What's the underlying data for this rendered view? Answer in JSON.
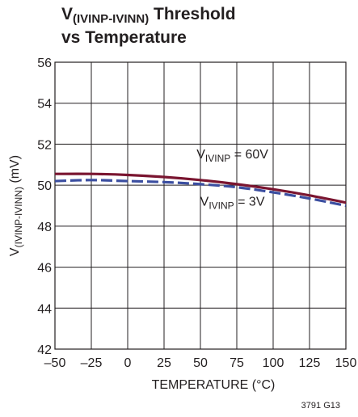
{
  "title": {
    "line1_main": "V",
    "line1_sub": "(IVINP-IVINN)",
    "line1_rest": " Threshold",
    "line2": "vs Temperature"
  },
  "figure_code": "3791 G13",
  "chart_data": {
    "type": "line",
    "xlabel": "TEMPERATURE (°C)",
    "ylabel_main": "V",
    "ylabel_sub": "(IVINP-IVINN)",
    "ylabel_rest": " (mV)",
    "xlim": [
      -50,
      150
    ],
    "ylim": [
      42,
      56
    ],
    "xticks": [
      "–50",
      "–25",
      "0",
      "25",
      "50",
      "75",
      "100",
      "125",
      "150"
    ],
    "xtick_values": [
      -50,
      -25,
      0,
      25,
      50,
      75,
      100,
      125,
      150
    ],
    "xgrid": [
      -50,
      -25,
      0,
      25,
      50,
      75,
      100,
      125,
      150
    ],
    "yticks": [
      "42",
      "44",
      "46",
      "48",
      "50",
      "52",
      "54",
      "56"
    ],
    "ytick_values": [
      42,
      44,
      46,
      48,
      50,
      52,
      54,
      56
    ],
    "grid": true,
    "series": [
      {
        "label_main": "V",
        "label_sub": "IVINP",
        "label_rest": " = 60V",
        "color": "#7a1530",
        "style": "solid",
        "label_pos": [
          72,
          51.3
        ],
        "x": [
          -50,
          -25,
          0,
          25,
          50,
          75,
          100,
          125,
          150
        ],
        "y": [
          50.55,
          50.55,
          50.5,
          50.4,
          50.25,
          50.05,
          49.8,
          49.5,
          49.15
        ]
      },
      {
        "label_main": "V",
        "label_sub": "IVINP",
        "label_rest": " = 3V",
        "color": "#3b4ea0",
        "style": "dashed",
        "label_pos": [
          72,
          49.0
        ],
        "x": [
          -50,
          -25,
          0,
          25,
          50,
          75,
          100,
          125,
          150
        ],
        "y": [
          50.2,
          50.25,
          50.2,
          50.15,
          50.05,
          49.9,
          49.65,
          49.35,
          49.0
        ]
      }
    ]
  }
}
